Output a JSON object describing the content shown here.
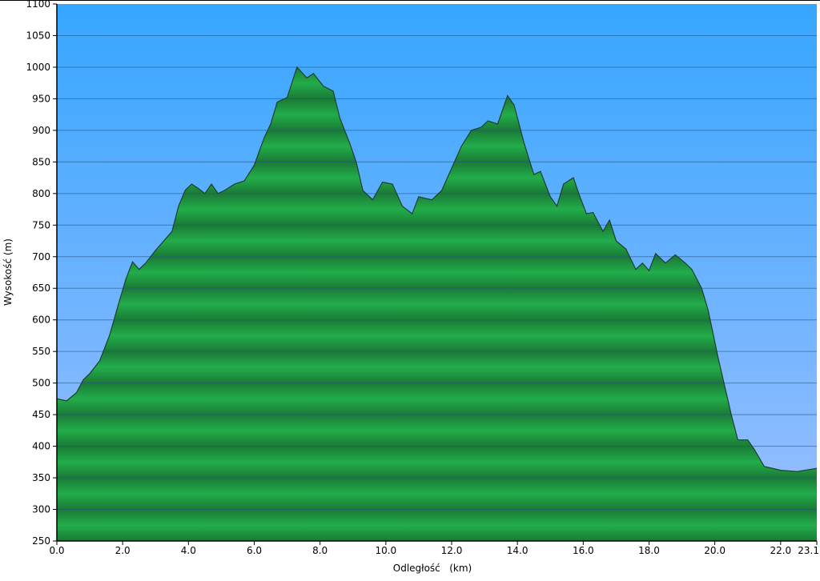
{
  "chart_data": {
    "type": "area",
    "title": "",
    "xlabel": "Odległość   (km)",
    "ylabel": "Wysokość (m)",
    "xlim": [
      0,
      23.1
    ],
    "ylim": [
      250,
      1100
    ],
    "x_ticks": [
      "0.0",
      "2.0",
      "4.0",
      "6.0",
      "8.0",
      "10.0",
      "12.0",
      "14.0",
      "16.0",
      "18.0",
      "20.0",
      "22.0",
      "23.1"
    ],
    "x_tick_values": [
      0,
      2,
      4,
      6,
      8,
      10,
      12,
      14,
      16,
      18,
      20,
      22,
      23.1
    ],
    "y_ticks": [
      250,
      300,
      350,
      400,
      450,
      500,
      550,
      600,
      650,
      700,
      750,
      800,
      850,
      900,
      950,
      1000,
      1050,
      1100
    ],
    "grid": true,
    "colors": {
      "sky_top": "#36a6ff",
      "sky_bottom": "#9dbfff",
      "fill_light": "#22ad4a",
      "fill_dark": "#1a7a36",
      "line": "#1f3f2a"
    },
    "series": [
      {
        "x": [
          0.0,
          0.3,
          0.6,
          0.8,
          1.0,
          1.3,
          1.6,
          1.9,
          2.1,
          2.3,
          2.5,
          2.7,
          3.0,
          3.3,
          3.5,
          3.7,
          3.9,
          4.1,
          4.3,
          4.5,
          4.7,
          4.9,
          5.1,
          5.4,
          5.7,
          6.0,
          6.3,
          6.5,
          6.7,
          7.0,
          7.3,
          7.6,
          7.8,
          8.1,
          8.4,
          8.6,
          8.9,
          9.1,
          9.3,
          9.6,
          9.9,
          10.2,
          10.5,
          10.8,
          11.0,
          11.4,
          11.7,
          12.0,
          12.3,
          12.6,
          12.9,
          13.1,
          13.4,
          13.7,
          13.9,
          14.2,
          14.5,
          14.7,
          15.0,
          15.2,
          15.4,
          15.7,
          15.9,
          16.1,
          16.3,
          16.6,
          16.8,
          17.0,
          17.3,
          17.6,
          17.8,
          18.0,
          18.2,
          18.5,
          18.8,
          19.1,
          19.3,
          19.6,
          19.8,
          20.1,
          20.5,
          20.7,
          21.0,
          21.2,
          21.5,
          22.0,
          22.5,
          23.1
        ],
        "y": [
          475,
          472,
          485,
          505,
          515,
          535,
          575,
          630,
          665,
          692,
          680,
          690,
          710,
          728,
          740,
          780,
          805,
          815,
          808,
          800,
          815,
          800,
          805,
          815,
          820,
          845,
          888,
          910,
          945,
          952,
          1000,
          983,
          990,
          970,
          962,
          920,
          880,
          850,
          805,
          790,
          818,
          815,
          780,
          768,
          795,
          790,
          805,
          840,
          875,
          900,
          905,
          915,
          910,
          955,
          940,
          880,
          830,
          835,
          795,
          780,
          815,
          825,
          795,
          768,
          770,
          740,
          758,
          725,
          712,
          680,
          690,
          678,
          705,
          690,
          703,
          690,
          680,
          650,
          615,
          540,
          450,
          410,
          410,
          395,
          368,
          362,
          360,
          365
        ]
      }
    ]
  }
}
